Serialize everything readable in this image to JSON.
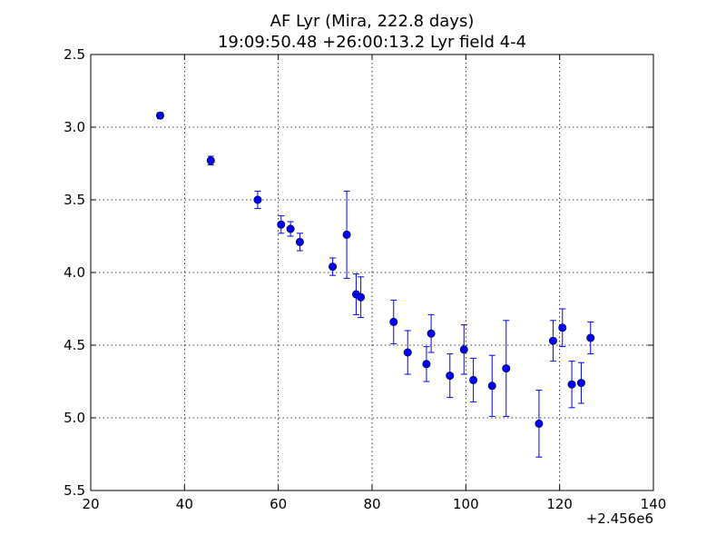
{
  "chart_data": {
    "type": "scatter",
    "title_line1": "AF Lyr (Mira, 222.8 days)",
    "title_line2": "19:09:50.48 +26:00:13.2 Lyr field 4-4",
    "xlabel": "",
    "ylabel": "",
    "x_offset_label": "+2.456e6",
    "xlim": [
      20,
      140
    ],
    "ylim": [
      5.5,
      2.5
    ],
    "y_inverted": true,
    "grid": true,
    "x_ticks": [
      20,
      40,
      60,
      80,
      100,
      120,
      140
    ],
    "x_tick_labels": [
      "20",
      "40",
      "60",
      "80",
      "100",
      "120",
      "140"
    ],
    "y_ticks": [
      2.5,
      3.0,
      3.5,
      4.0,
      4.5,
      5.0,
      5.5
    ],
    "y_tick_labels": [
      "2.5",
      "3.0",
      "3.5",
      "4.0",
      "4.5",
      "5.0",
      "5.5"
    ],
    "marker_color": "#0000ff",
    "points": [
      {
        "x": 34.8,
        "y": 2.92,
        "err": 0.02
      },
      {
        "x": 45.6,
        "y": 3.23,
        "err": 0.03
      },
      {
        "x": 55.6,
        "y": 3.5,
        "err": 0.06
      },
      {
        "x": 60.6,
        "y": 3.67,
        "err": 0.06
      },
      {
        "x": 62.6,
        "y": 3.7,
        "err": 0.05
      },
      {
        "x": 64.6,
        "y": 3.79,
        "err": 0.06
      },
      {
        "x": 71.6,
        "y": 3.96,
        "err": 0.06
      },
      {
        "x": 74.6,
        "y": 3.74,
        "err": 0.3
      },
      {
        "x": 76.6,
        "y": 4.15,
        "err": 0.14
      },
      {
        "x": 77.6,
        "y": 4.17,
        "err": 0.14
      },
      {
        "x": 84.6,
        "y": 4.34,
        "err": 0.15
      },
      {
        "x": 87.6,
        "y": 4.55,
        "err": 0.15
      },
      {
        "x": 91.6,
        "y": 4.63,
        "err": 0.12
      },
      {
        "x": 92.6,
        "y": 4.42,
        "err": 0.13
      },
      {
        "x": 96.6,
        "y": 4.71,
        "err": 0.15
      },
      {
        "x": 99.6,
        "y": 4.53,
        "err": 0.17
      },
      {
        "x": 101.6,
        "y": 4.74,
        "err": 0.15
      },
      {
        "x": 105.6,
        "y": 4.78,
        "err": 0.21
      },
      {
        "x": 108.6,
        "y": 4.66,
        "err": 0.33
      },
      {
        "x": 115.6,
        "y": 5.04,
        "err": 0.23
      },
      {
        "x": 118.6,
        "y": 4.47,
        "err": 0.14
      },
      {
        "x": 120.6,
        "y": 4.38,
        "err": 0.13
      },
      {
        "x": 122.6,
        "y": 4.77,
        "err": 0.16
      },
      {
        "x": 124.6,
        "y": 4.76,
        "err": 0.14
      },
      {
        "x": 126.6,
        "y": 4.45,
        "err": 0.11
      }
    ]
  }
}
